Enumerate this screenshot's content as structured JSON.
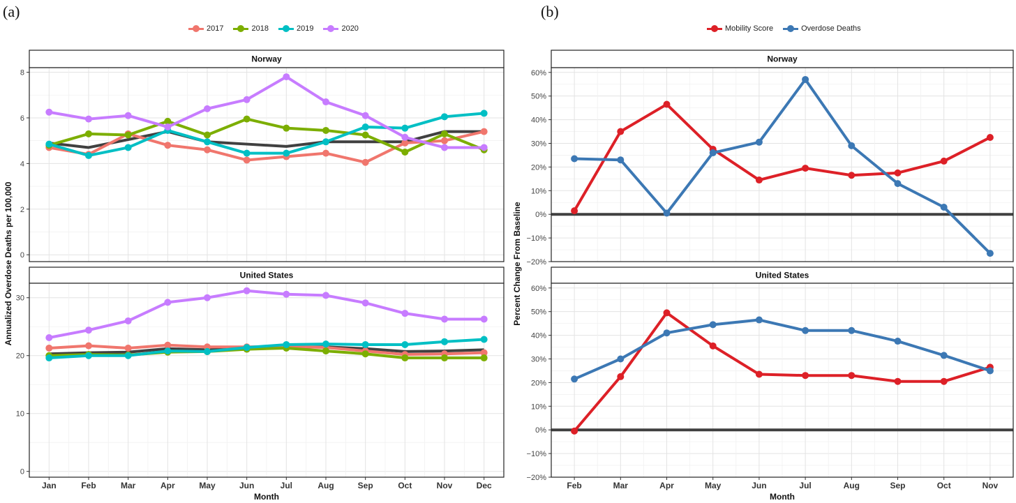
{
  "panels": {
    "a_tag": "(a)",
    "b_tag": "(b)"
  },
  "chart_data": [
    {
      "id": "a",
      "type": "line",
      "ylabel": "Annualized Overdose Deaths per 100,000",
      "xlabel": "Month",
      "categories": [
        "Jan",
        "Feb",
        "Mar",
        "Apr",
        "May",
        "Jun",
        "Jul",
        "Aug",
        "Sep",
        "Oct",
        "Nov",
        "Dec"
      ],
      "legend": [
        {
          "name": "2017",
          "color": "#F0766D"
        },
        {
          "name": "2018",
          "color": "#7CAE00"
        },
        {
          "name": "2019",
          "color": "#00BFC4"
        },
        {
          "name": "2020",
          "color": "#C77CFF"
        }
      ],
      "reference_line_color": "#404040",
      "facets": [
        {
          "title": "Norway",
          "ylim": [
            -0.3,
            8.2
          ],
          "yticks": [
            0,
            2,
            4,
            6,
            8
          ],
          "reference_line": [
            4.9,
            4.7,
            5.05,
            5.4,
            4.95,
            4.85,
            4.75,
            4.95,
            4.95,
            4.95,
            5.4,
            5.4
          ],
          "series": [
            {
              "name": "2017",
              "values": [
                4.7,
                4.4,
                5.3,
                4.8,
                4.6,
                4.15,
                4.3,
                4.45,
                4.05,
                4.9,
                5.0,
                5.4
              ]
            },
            {
              "name": "2018",
              "values": [
                4.8,
                5.3,
                5.25,
                5.85,
                5.25,
                5.95,
                5.55,
                5.45,
                5.25,
                4.5,
                5.3,
                4.6
              ]
            },
            {
              "name": "2019",
              "values": [
                4.85,
                4.35,
                4.7,
                5.45,
                4.95,
                4.45,
                4.45,
                4.95,
                5.6,
                5.55,
                6.05,
                6.2
              ]
            },
            {
              "name": "2020",
              "values": [
                6.25,
                5.95,
                6.1,
                5.6,
                6.4,
                6.8,
                7.8,
                6.7,
                6.1,
                5.15,
                4.7,
                4.7
              ]
            }
          ]
        },
        {
          "title": "United States",
          "ylim": [
            -1,
            32.5
          ],
          "yticks": [
            0,
            10,
            20,
            30
          ],
          "reference_line": [
            20.3,
            20.5,
            20.6,
            21.2,
            21.0,
            21.2,
            21.4,
            21.5,
            21.2,
            20.7,
            20.8,
            21.0
          ],
          "series": [
            {
              "name": "2017",
              "values": [
                21.3,
                21.7,
                21.3,
                21.8,
                21.5,
                21.5,
                21.6,
                21.4,
                20.8,
                20.2,
                20.3,
                20.5
              ]
            },
            {
              "name": "2018",
              "values": [
                20.0,
                20.2,
                20.1,
                20.6,
                20.7,
                21.1,
                21.3,
                20.8,
                20.3,
                19.6,
                19.6,
                19.6
              ]
            },
            {
              "name": "2019",
              "values": [
                19.6,
                20.0,
                20.0,
                20.8,
                20.7,
                21.4,
                21.9,
                22.0,
                21.9,
                21.9,
                22.4,
                22.8
              ]
            },
            {
              "name": "2020",
              "values": [
                23.1,
                24.4,
                26.0,
                29.2,
                30.0,
                31.2,
                30.6,
                30.4,
                29.1,
                27.3,
                26.3,
                26.3
              ]
            }
          ]
        }
      ]
    },
    {
      "id": "b",
      "type": "line",
      "ylabel": "Percent Change From Baseline",
      "xlabel": "Month",
      "categories": [
        "Feb",
        "Mar",
        "Apr",
        "May",
        "Jun",
        "Jul",
        "Aug",
        "Sep",
        "Oct",
        "Nov"
      ],
      "legend": [
        {
          "name": "Mobility Score",
          "color": "#DD2027"
        },
        {
          "name": "Overdose Deaths",
          "color": "#3C78B4"
        }
      ],
      "reference_line_color": "#404040",
      "facets": [
        {
          "title": "Norway",
          "ylim": [
            -20,
            62
          ],
          "yticks": [
            60,
            50,
            40,
            30,
            20,
            10,
            0,
            -10,
            -20
          ],
          "ytick_labels": [
            "60%",
            "50%",
            "40%",
            "30%",
            "20%",
            "10%",
            "0%",
            "−10%",
            "−20%"
          ],
          "series": [
            {
              "name": "Mobility Score",
              "values": [
                1.5,
                35.0,
                46.5,
                27.5,
                14.5,
                19.5,
                16.5,
                17.5,
                22.5,
                32.5
              ]
            },
            {
              "name": "Overdose Deaths",
              "values": [
                23.5,
                23.0,
                0.5,
                26.0,
                30.5,
                57.0,
                29.0,
                13.0,
                3.0,
                -16.5
              ]
            }
          ]
        },
        {
          "title": "United States",
          "ylim": [
            -20,
            62
          ],
          "yticks": [
            60,
            50,
            40,
            30,
            20,
            10,
            0,
            -10,
            -20
          ],
          "ytick_labels": [
            "60%",
            "50%",
            "40%",
            "30%",
            "20%",
            "10%",
            "0%",
            "−10%",
            "−20%"
          ],
          "series": [
            {
              "name": "Mobility Score",
              "values": [
                -0.5,
                22.5,
                49.5,
                35.5,
                23.5,
                23.0,
                23.0,
                20.5,
                20.5,
                26.5
              ]
            },
            {
              "name": "Overdose Deaths",
              "values": [
                21.5,
                30.0,
                41.0,
                44.5,
                46.5,
                42.0,
                42.0,
                37.5,
                31.5,
                25.0
              ]
            }
          ]
        }
      ]
    }
  ]
}
